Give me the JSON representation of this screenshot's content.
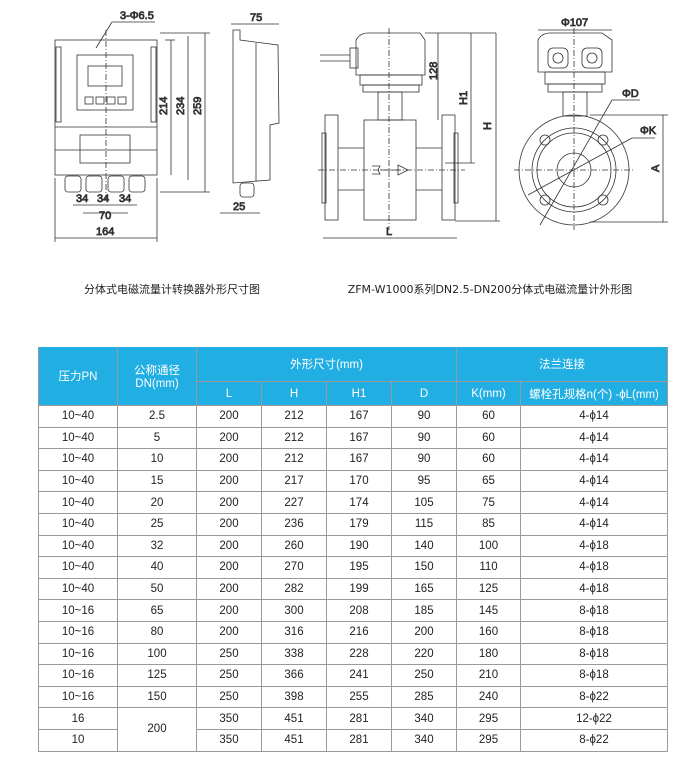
{
  "drawings": {
    "converter": {
      "hole_label": "3-Φ6.5",
      "depth_label": "75",
      "h214": "214",
      "h234": "234",
      "h259": "259",
      "w34a": "34",
      "w34b": "34",
      "w34c": "34",
      "w70": "70",
      "w164": "164",
      "gland_label": "25",
      "caption": "分体式电磁流量计转换器外形尺寸图"
    },
    "sensor": {
      "head_dia": "Φ107",
      "h128": "128",
      "h1": "H1",
      "h": "H",
      "l": "L",
      "d": "ΦD",
      "k": "ΦK",
      "a": "A",
      "caption": "ZFM-W1000系列DN2.5-DN200分体式电磁流量计外形图"
    }
  },
  "table": {
    "header_color": "#21afe3",
    "headers": {
      "pn": "压力PN",
      "dn": "公称通径DN(mm)",
      "dims": "外形尺寸(mm)",
      "flange": "法兰连接",
      "L": "L",
      "H": "H",
      "H1": "H1",
      "D": "D",
      "K": "K(mm)",
      "bolt": "螺栓孔规格n(个) -ϕL(mm)"
    },
    "rows": [
      [
        "10~40",
        "2.5",
        "200",
        "212",
        "167",
        "90",
        "60",
        "4-ϕ14"
      ],
      [
        "10~40",
        "5",
        "200",
        "212",
        "167",
        "90",
        "60",
        "4-ϕ14"
      ],
      [
        "10~40",
        "10",
        "200",
        "212",
        "167",
        "90",
        "60",
        "4-ϕ14"
      ],
      [
        "10~40",
        "15",
        "200",
        "217",
        "170",
        "95",
        "65",
        "4-ϕ14"
      ],
      [
        "10~40",
        "20",
        "200",
        "227",
        "174",
        "105",
        "75",
        "4-ϕ14"
      ],
      [
        "10~40",
        "25",
        "200",
        "236",
        "179",
        "115",
        "85",
        "4-ϕ14"
      ],
      [
        "10~40",
        "32",
        "200",
        "260",
        "190",
        "140",
        "100",
        "4-ϕ18"
      ],
      [
        "10~40",
        "40",
        "200",
        "270",
        "195",
        "150",
        "110",
        "4-ϕ18"
      ],
      [
        "10~40",
        "50",
        "200",
        "282",
        "199",
        "165",
        "125",
        "4-ϕ18"
      ],
      [
        "10~16",
        "65",
        "200",
        "300",
        "208",
        "185",
        "145",
        "8-ϕ18"
      ],
      [
        "10~16",
        "80",
        "200",
        "316",
        "216",
        "200",
        "160",
        "8-ϕ18"
      ],
      [
        "10~16",
        "100",
        "250",
        "338",
        "228",
        "220",
        "180",
        "8-ϕ18"
      ],
      [
        "10~16",
        "125",
        "250",
        "366",
        "241",
        "250",
        "210",
        "8-ϕ18"
      ],
      [
        "10~16",
        "150",
        "250",
        "398",
        "255",
        "285",
        "240",
        "8-ϕ22"
      ],
      [
        "16",
        "200",
        "350",
        "451",
        "281",
        "340",
        "295",
        "12-ϕ22"
      ],
      [
        "10",
        "",
        "350",
        "451",
        "281",
        "340",
        "295",
        "8-ϕ22"
      ]
    ]
  }
}
